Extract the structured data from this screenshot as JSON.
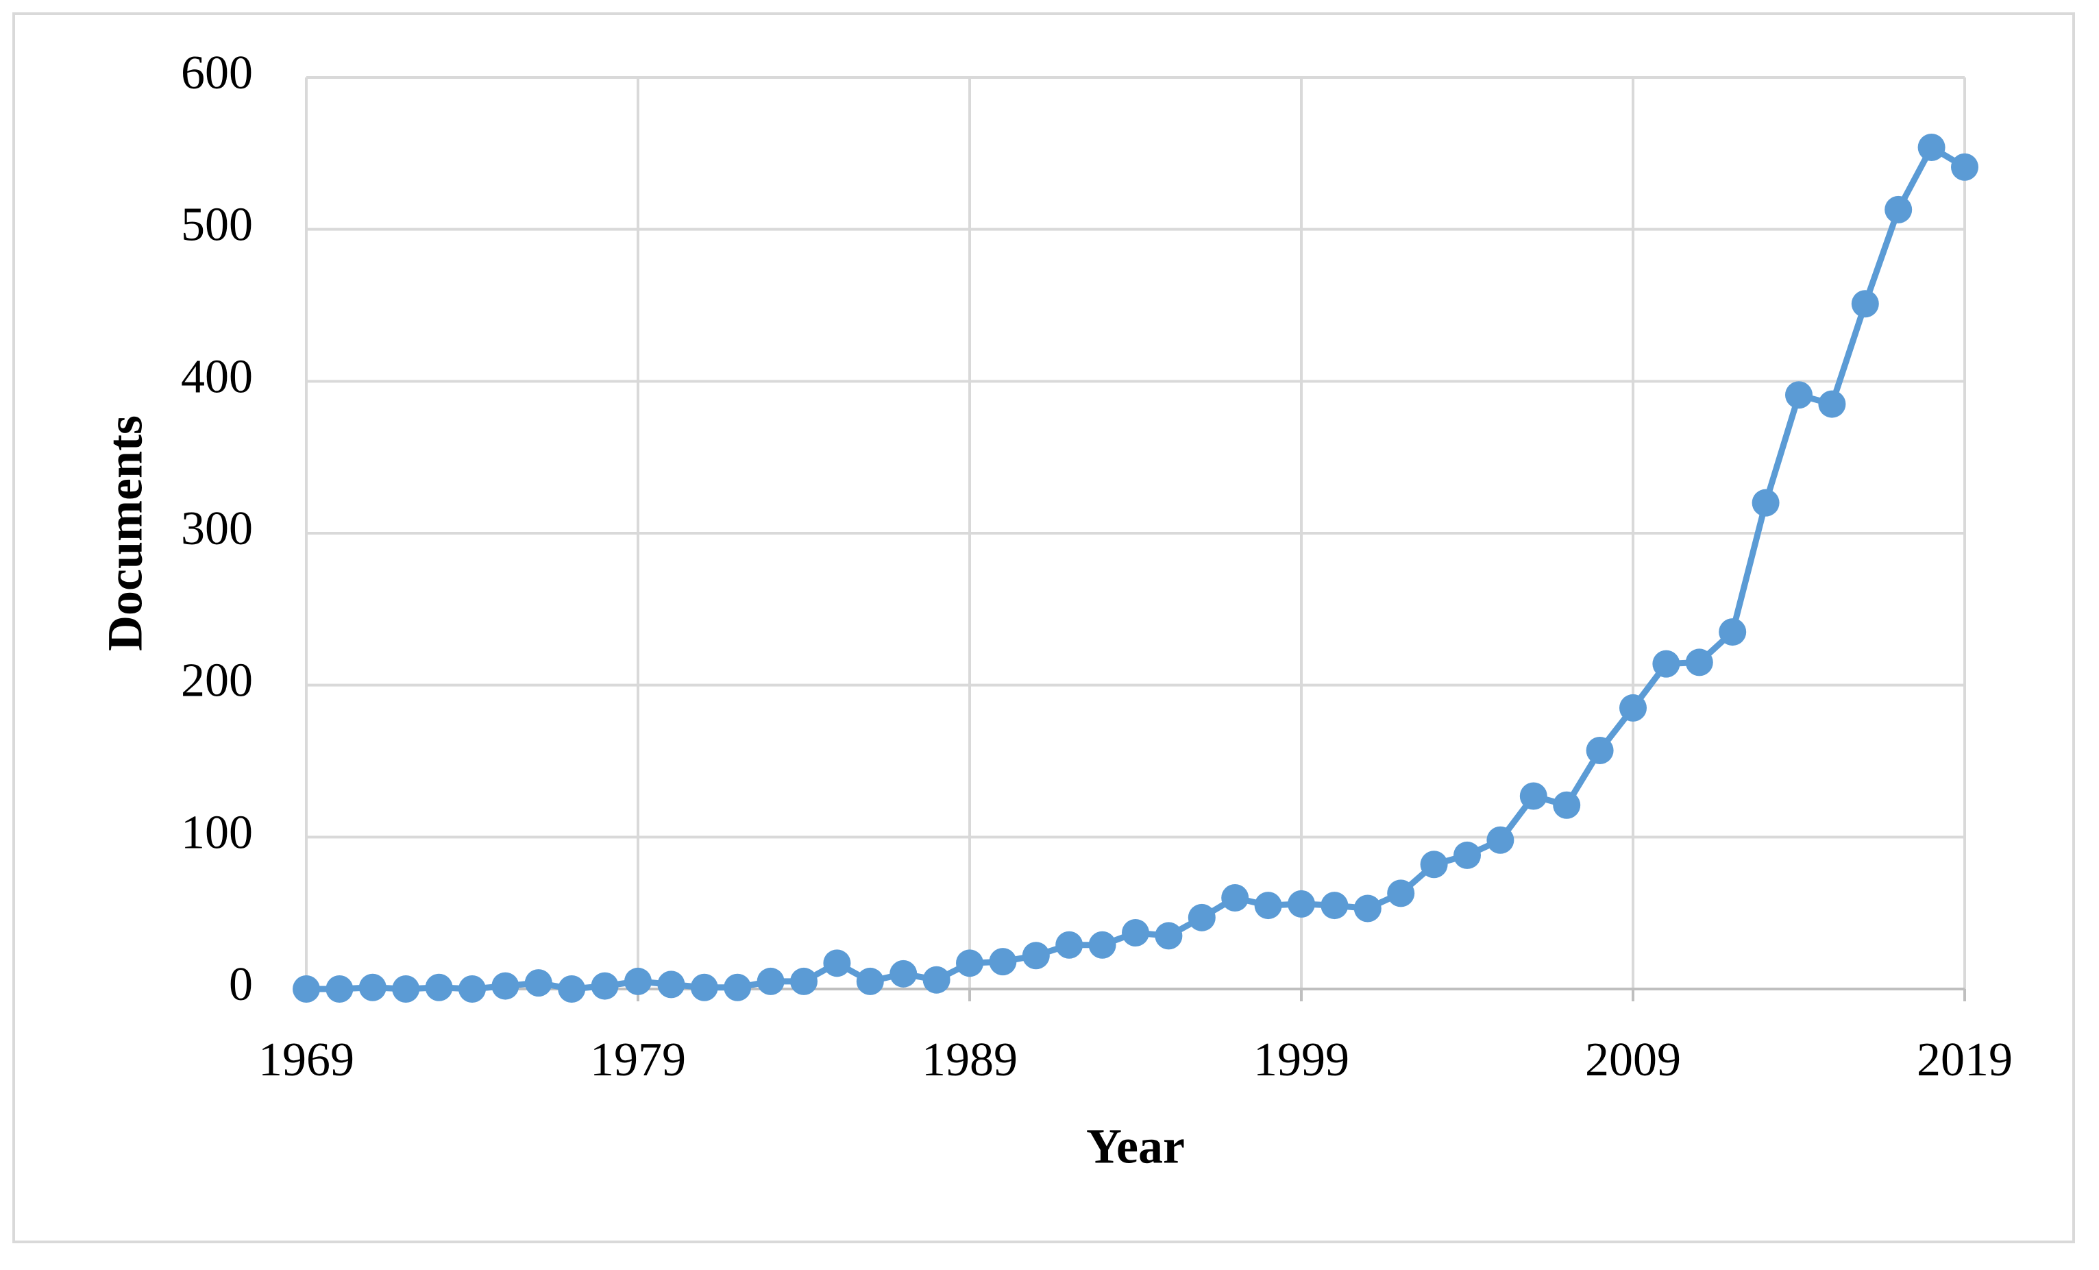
{
  "chart_data": {
    "type": "line",
    "x_label": "Year",
    "y_label": "Documents",
    "x": [
      1969,
      1970,
      1971,
      1972,
      1973,
      1974,
      1975,
      1976,
      1977,
      1978,
      1979,
      1980,
      1981,
      1982,
      1983,
      1984,
      1985,
      1986,
      1987,
      1988,
      1989,
      1990,
      1991,
      1992,
      1993,
      1994,
      1995,
      1996,
      1997,
      1998,
      1999,
      2000,
      2001,
      2002,
      2003,
      2004,
      2005,
      2006,
      2007,
      2008,
      2009,
      2010,
      2011,
      2012,
      2013,
      2014,
      2015,
      2016,
      2017,
      2018,
      2019
    ],
    "series": [
      {
        "name": "Documents",
        "color": "#5b9bd5",
        "values": [
          0,
          0,
          1,
          0,
          1,
          0,
          2,
          4,
          0,
          2,
          5,
          3,
          1,
          1,
          5,
          5,
          17,
          5,
          10,
          6,
          17,
          18,
          22,
          29,
          29,
          37,
          35,
          47,
          60,
          55,
          56,
          55,
          53,
          63,
          82,
          88,
          98,
          127,
          121,
          157,
          185,
          214,
          215,
          235,
          320,
          391,
          385,
          451,
          513,
          554,
          541
        ]
      }
    ],
    "xlim": [
      1969,
      2019
    ],
    "xticks": [
      1969,
      1979,
      1989,
      1999,
      2009,
      2019
    ],
    "ylim": [
      0,
      600
    ],
    "yticks": [
      0,
      100,
      200,
      300,
      400,
      500,
      600
    ],
    "grid": true
  }
}
